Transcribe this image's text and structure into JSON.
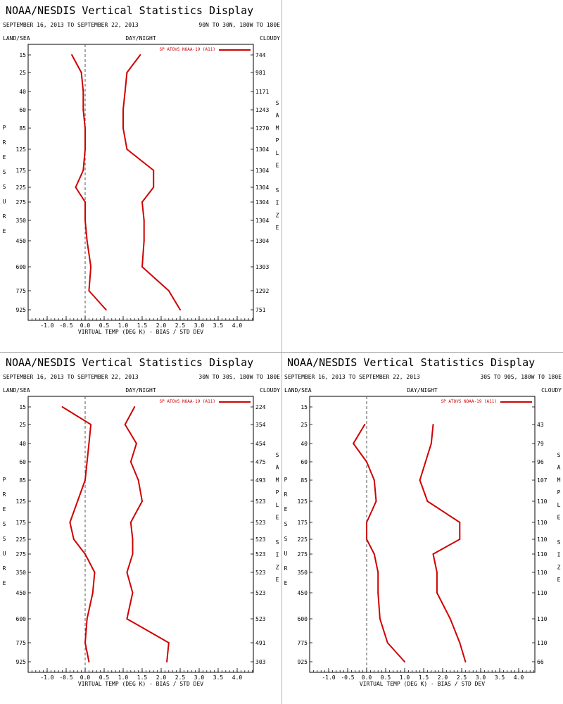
{
  "chart_data": [
    {
      "type": "line",
      "title": "NOAA/NESDIS Vertical Statistics Display",
      "date_range": "SEPTEMBER 16, 2013 TO SEPTEMBER 22, 2013",
      "region": "90N TO 30N, 180W TO 180E",
      "land_sea": "LAND/SEA",
      "day_night": "DAY/NIGHT",
      "cloudy": "CLOUDY",
      "ylabel": "PRESSURE",
      "y2label": "SAMPLE SIZE",
      "xlabel": "VIRTUAL TEMP (DEG K) - BIAS / STD DEV",
      "xlim": [
        -1.5,
        4.5
      ],
      "xticks": [
        -1.0,
        -0.5,
        0.0,
        0.5,
        1.0,
        1.5,
        2.0,
        2.5,
        3.0,
        3.5,
        4.0
      ],
      "xtick_labels": [
        "-1.0",
        "-0.5",
        "0.0",
        "0.5",
        "1.0",
        "1.5",
        "2.0",
        "2.5",
        "3.0",
        "3.5",
        "4.0"
      ],
      "pressure_levels": [
        "15",
        "25",
        "40",
        "60",
        "85",
        "125",
        "175",
        "225",
        "275",
        "350",
        "450",
        "600",
        "775",
        "925"
      ],
      "sample_sizes": [
        "744",
        "981",
        "1171",
        "1243",
        "1270",
        "1304",
        "1304",
        "1304",
        "1304",
        "1304",
        "1304",
        "1303",
        "1292",
        "751"
      ],
      "legend": "SP ATOVS NOAA-19 (A11)",
      "legend_position": "top-right",
      "series_color": "#d00000",
      "series": [
        {
          "role": "bias",
          "values": [
            -0.35,
            -0.1,
            -0.05,
            -0.05,
            0.0,
            0.0,
            -0.05,
            -0.25,
            0.0,
            0.0,
            0.05,
            0.15,
            0.1,
            0.55
          ]
        },
        {
          "role": "std_dev",
          "values": [
            1.45,
            1.1,
            1.05,
            1.0,
            1.0,
            1.1,
            1.8,
            1.8,
            1.5,
            1.55,
            1.55,
            1.5,
            2.2,
            2.5
          ]
        }
      ]
    },
    {
      "type": "line",
      "title": "NOAA/NESDIS Vertical Statistics Display",
      "date_range": "SEPTEMBER 16, 2013 TO SEPTEMBER 22, 2013",
      "region": "30N TO 30S, 180W TO 180E",
      "land_sea": "LAND/SEA",
      "day_night": "DAY/NIGHT",
      "cloudy": "CLOUDY",
      "ylabel": "PRESSURE",
      "y2label": "SAMPLE SIZE",
      "xlabel": "VIRTUAL TEMP (DEG K) - BIAS / STD DEV",
      "xlim": [
        -1.5,
        4.5
      ],
      "xticks": [
        -1.0,
        -0.5,
        0.0,
        0.5,
        1.0,
        1.5,
        2.0,
        2.5,
        3.0,
        3.5,
        4.0
      ],
      "xtick_labels": [
        "-1.0",
        "-0.5",
        "0.0",
        "0.5",
        "1.0",
        "1.5",
        "2.0",
        "2.5",
        "3.0",
        "3.5",
        "4.0"
      ],
      "pressure_levels": [
        "15",
        "25",
        "40",
        "60",
        "85",
        "125",
        "175",
        "225",
        "275",
        "350",
        "450",
        "600",
        "775",
        "925"
      ],
      "sample_sizes": [
        "224",
        "354",
        "454",
        "475",
        "493",
        "523",
        "523",
        "523",
        "523",
        "523",
        "523",
        "523",
        "491",
        "303"
      ],
      "legend": "SP ATOVS NOAA-19 (A11)",
      "legend_position": "top-right",
      "series_color": "#d00000",
      "series": [
        {
          "role": "bias",
          "values": [
            -0.6,
            0.15,
            0.1,
            0.05,
            0.0,
            -0.2,
            -0.4,
            -0.3,
            0.0,
            0.25,
            0.2,
            0.05,
            0.0,
            0.1
          ]
        },
        {
          "role": "std_dev",
          "values": [
            1.3,
            1.05,
            1.35,
            1.2,
            1.4,
            1.5,
            1.2,
            1.25,
            1.25,
            1.1,
            1.25,
            1.1,
            2.2,
            2.15
          ]
        }
      ]
    },
    {
      "type": "line",
      "title": "NOAA/NESDIS Vertical Statistics Display",
      "date_range": "SEPTEMBER 16, 2013 TO SEPTEMBER 22, 2013",
      "region": "30S TO 90S, 180W TO 180E",
      "land_sea": "LAND/SEA",
      "day_night": "DAY/NIGHT",
      "cloudy": "CLOUDY",
      "ylabel": "PRESSURE",
      "y2label": "SAMPLE SIZE",
      "xlabel": "VIRTUAL TEMP (DEG K) - BIAS / STD DEV",
      "xlim": [
        -1.5,
        4.5
      ],
      "xticks": [
        -1.0,
        -0.5,
        0.0,
        0.5,
        1.0,
        1.5,
        2.0,
        2.5,
        3.0,
        3.5,
        4.0
      ],
      "xtick_labels": [
        "-1.0",
        "-0.5",
        "0.0",
        "0.5",
        "1.0",
        "1.5",
        "2.0",
        "2.5",
        "3.0",
        "3.5",
        "4.0"
      ],
      "pressure_levels": [
        "15",
        "25",
        "40",
        "60",
        "85",
        "125",
        "175",
        "225",
        "275",
        "350",
        "450",
        "600",
        "775",
        "925"
      ],
      "sample_sizes": [
        "",
        "43",
        "79",
        "96",
        "107",
        "110",
        "110",
        "110",
        "110",
        "110",
        "110",
        "110",
        "110",
        "66"
      ],
      "legend": "SP ATOVS NOAA-19 (A11)",
      "legend_position": "top-right",
      "series_color": "#d00000",
      "series": [
        {
          "role": "bias",
          "values": [
            null,
            -0.05,
            -0.35,
            0.0,
            0.2,
            0.25,
            0.0,
            0.0,
            0.2,
            0.3,
            0.3,
            0.35,
            0.55,
            1.0
          ]
        },
        {
          "role": "std_dev",
          "values": [
            null,
            1.75,
            1.7,
            1.55,
            1.4,
            1.6,
            2.45,
            2.45,
            1.75,
            1.85,
            1.85,
            2.2,
            2.45,
            2.6
          ]
        }
      ]
    }
  ]
}
